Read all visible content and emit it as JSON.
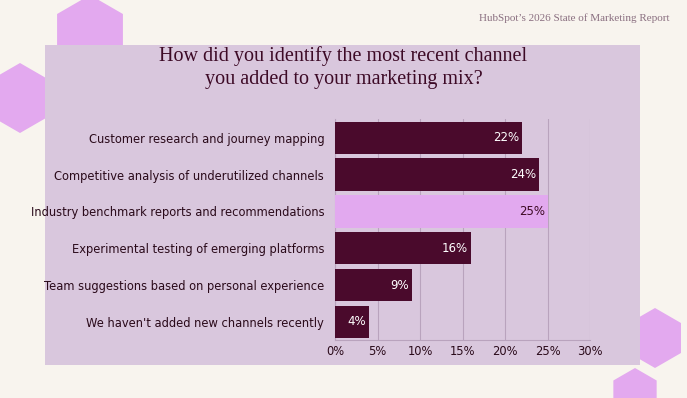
{
  "chart_data": {
    "type": "bar",
    "orientation": "horizontal",
    "title": "How did you identify the most recent channel\nyou added to your marketing mix?",
    "annotations": [
      "HubSpot’s 2026 State of Marketing Report"
    ],
    "categories": [
      "Customer research and journey mapping",
      "Competitive analysis of underutilized channels",
      "Industry benchmark reports and recommendations",
      "Experimental testing of emerging platforms",
      "Team suggestions based on personal experience",
      "We haven't added new channels recently"
    ],
    "values": [
      22,
      24,
      25,
      16,
      9,
      4
    ],
    "value_labels": [
      "22%",
      "24%",
      "25%",
      "16%",
      "9%",
      "4%"
    ],
    "colors": [
      "#4a0a2c",
      "#4a0a2c",
      "#e2a9ef",
      "#4a0a2c",
      "#4a0a2c",
      "#4a0a2c"
    ],
    "xlim": [
      0,
      30
    ],
    "xticks": [
      {
        "value": 0,
        "label": "0%"
      },
      {
        "value": 5,
        "label": "5%"
      },
      {
        "value": 10,
        "label": "10%"
      },
      {
        "value": 15,
        "label": "15%"
      },
      {
        "value": 20,
        "label": "20%"
      },
      {
        "value": 25,
        "label": "25%"
      },
      {
        "value": 30,
        "label": "30%"
      }
    ],
    "grid": true,
    "data_labels": true
  }
}
